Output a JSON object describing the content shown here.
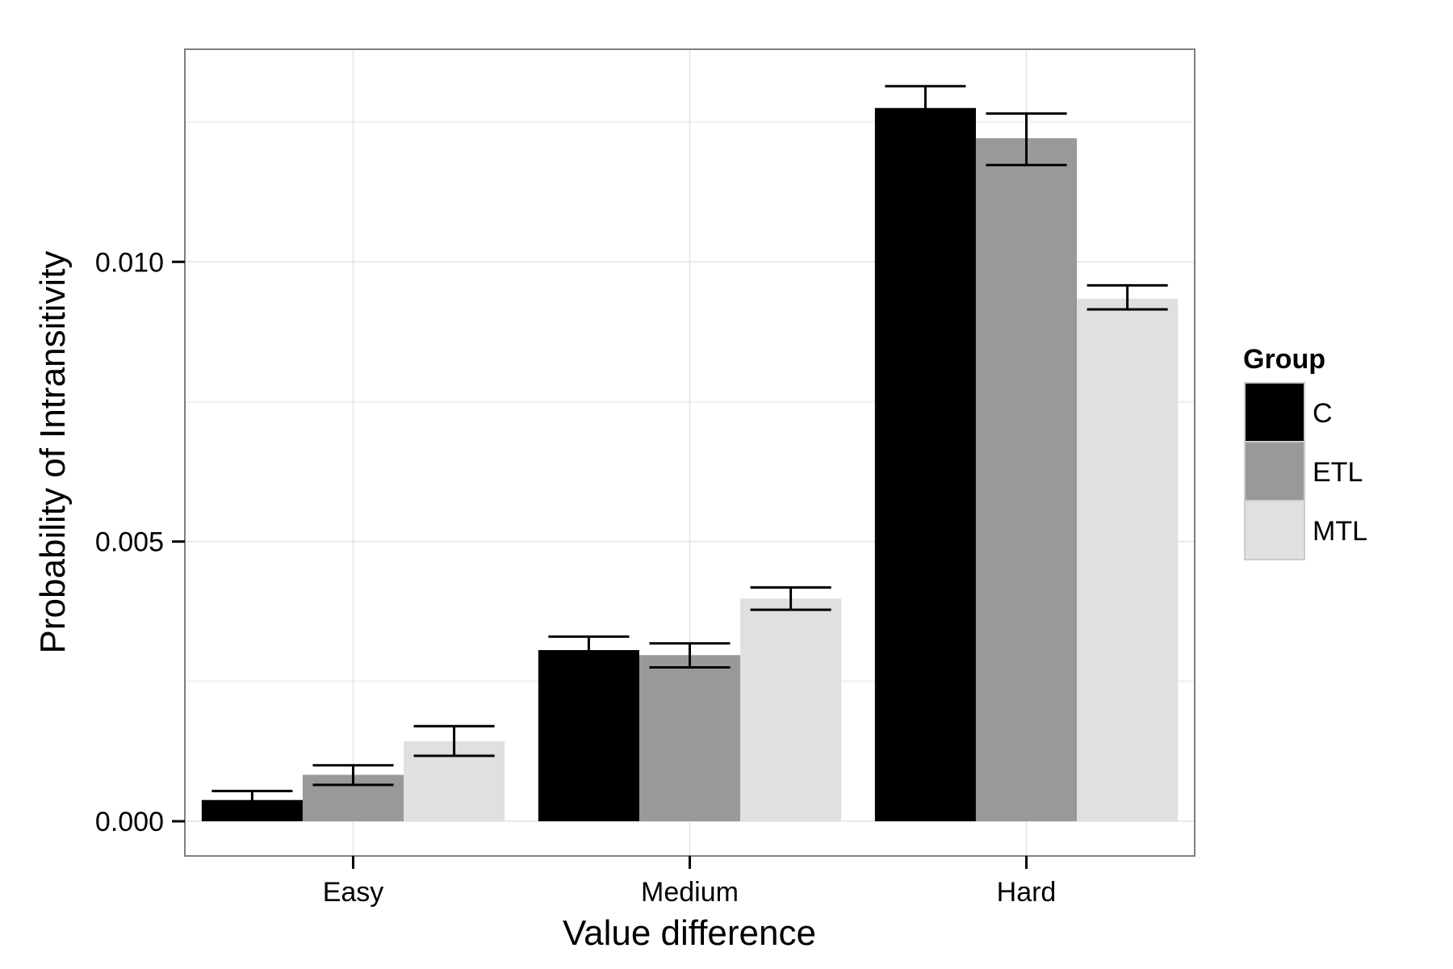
{
  "chart_data": {
    "type": "bar",
    "title": "",
    "xlabel": "Value difference",
    "ylabel": "Probability of Intransitivity",
    "categories": [
      "Easy",
      "Medium",
      "Hard"
    ],
    "ylim": [
      -0.00062,
      0.0138
    ],
    "yticks": [
      0.0,
      0.005,
      0.01
    ],
    "ytick_labels": [
      "0.000",
      "0.005",
      "0.010"
    ],
    "grid": true,
    "legend": {
      "title": "Group",
      "position": "right"
    },
    "series": [
      {
        "name": "C",
        "color": "#000000",
        "values": [
          0.00038,
          0.00306,
          0.01275
        ],
        "error_low": [
          0.0002,
          0.00285,
          0.01235
        ],
        "error_high": [
          0.00054,
          0.0033,
          0.01314
        ]
      },
      {
        "name": "ETL",
        "color": "#999999",
        "values": [
          0.00083,
          0.00297,
          0.01221
        ],
        "error_low": [
          0.00065,
          0.00275,
          0.01173
        ],
        "error_high": [
          0.001,
          0.00318,
          0.01265
        ]
      },
      {
        "name": "MTL",
        "color": "#e0e0e0",
        "values": [
          0.00143,
          0.00398,
          0.00934
        ],
        "error_low": [
          0.00117,
          0.00378,
          0.00915
        ],
        "error_high": [
          0.0017,
          0.00418,
          0.00958
        ]
      }
    ]
  }
}
